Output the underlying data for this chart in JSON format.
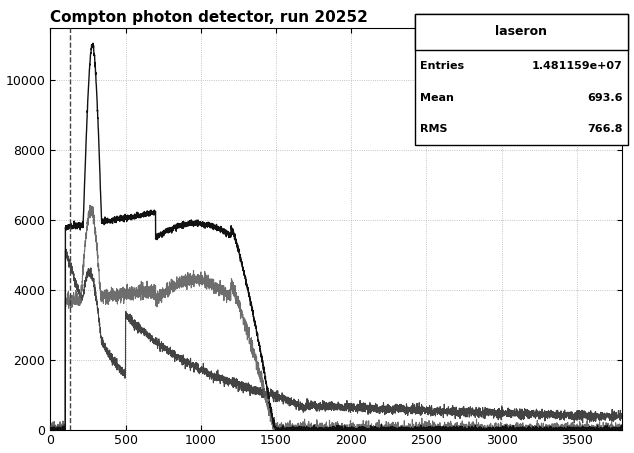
{
  "title": "Compton photon detector, run 20252",
  "xlim": [
    0,
    3800
  ],
  "ylim": [
    0,
    11500
  ],
  "xticks": [
    0,
    500,
    1000,
    1500,
    2000,
    2500,
    3000,
    3500
  ],
  "yticks": [
    0,
    2000,
    4000,
    6000,
    8000,
    10000
  ],
  "bg_color": "#ffffff",
  "plot_bg_color": "#ffffff",
  "grid_color": "#aaaaaa",
  "legend_title": "laseron",
  "dashed_line_x": 130,
  "curve1_color": "#111111",
  "curve2_color": "#555555",
  "curve3_color": "#222222",
  "stats_entries": [
    [
      "Entries",
      "1.481159e+07"
    ],
    [
      "Mean",
      "693.6"
    ],
    [
      "RMS",
      "766.8"
    ]
  ]
}
